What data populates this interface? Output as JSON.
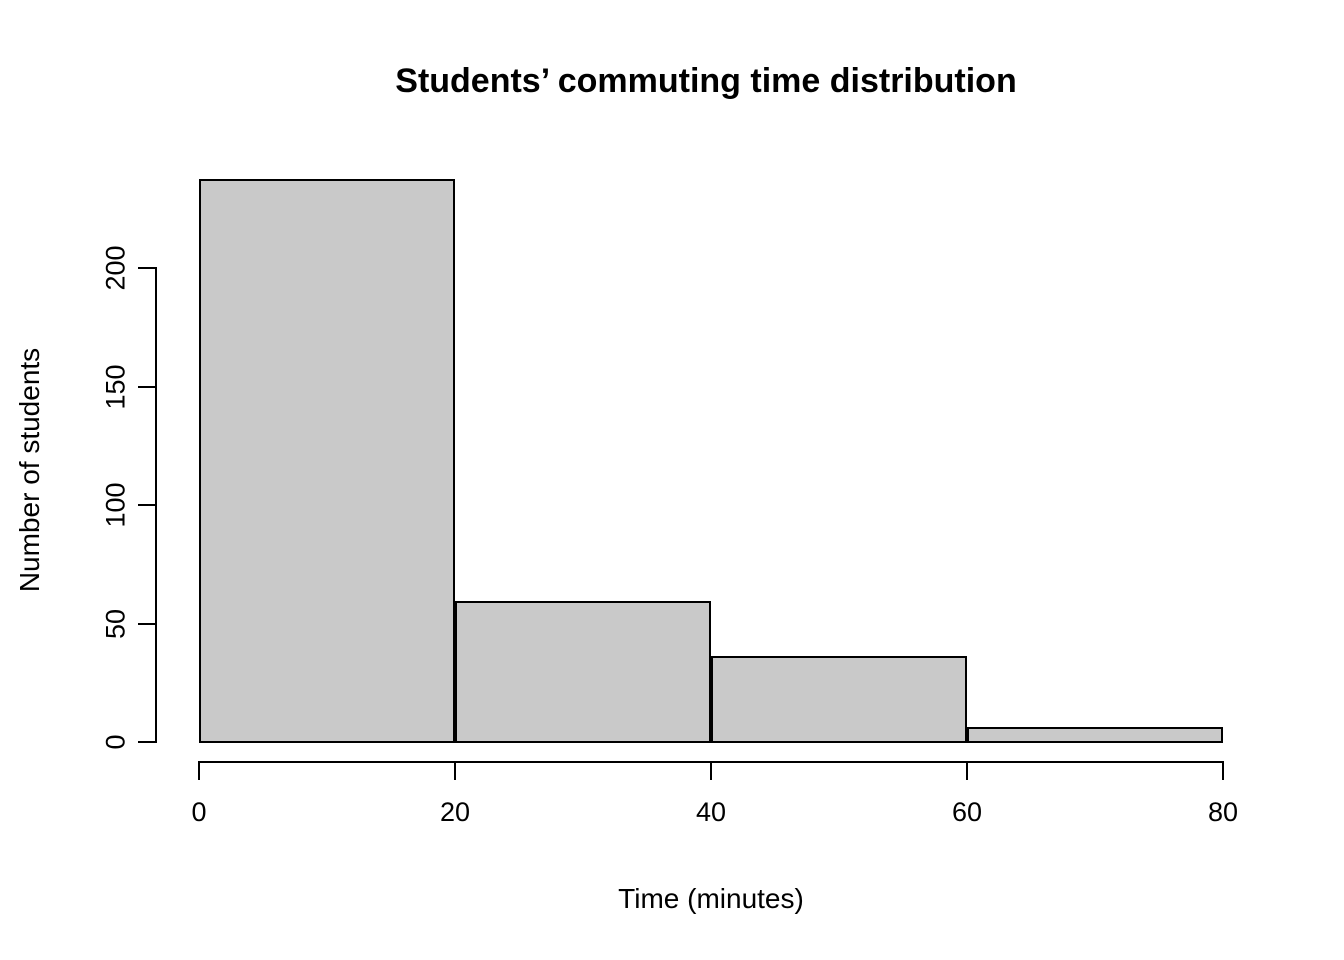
{
  "chart_data": {
    "type": "bar",
    "subtype": "histogram",
    "title": "Students’ commuting time distribution",
    "xlabel": "Time (minutes)",
    "ylabel": "Number of students",
    "bin_edges": [
      0,
      20,
      40,
      60,
      80
    ],
    "counts": [
      237,
      59,
      36,
      6
    ],
    "x_ticks": [
      0,
      20,
      40,
      60,
      80
    ],
    "y_ticks": [
      0,
      50,
      100,
      150,
      200
    ],
    "xlim": [
      0,
      80
    ],
    "y_axis_range": [
      0,
      200
    ],
    "grid": false,
    "legend": "none",
    "bar_fill": "#C9C9C9",
    "bar_border": "#000000",
    "background": "#FFFFFF",
    "text_color": "#000000"
  }
}
